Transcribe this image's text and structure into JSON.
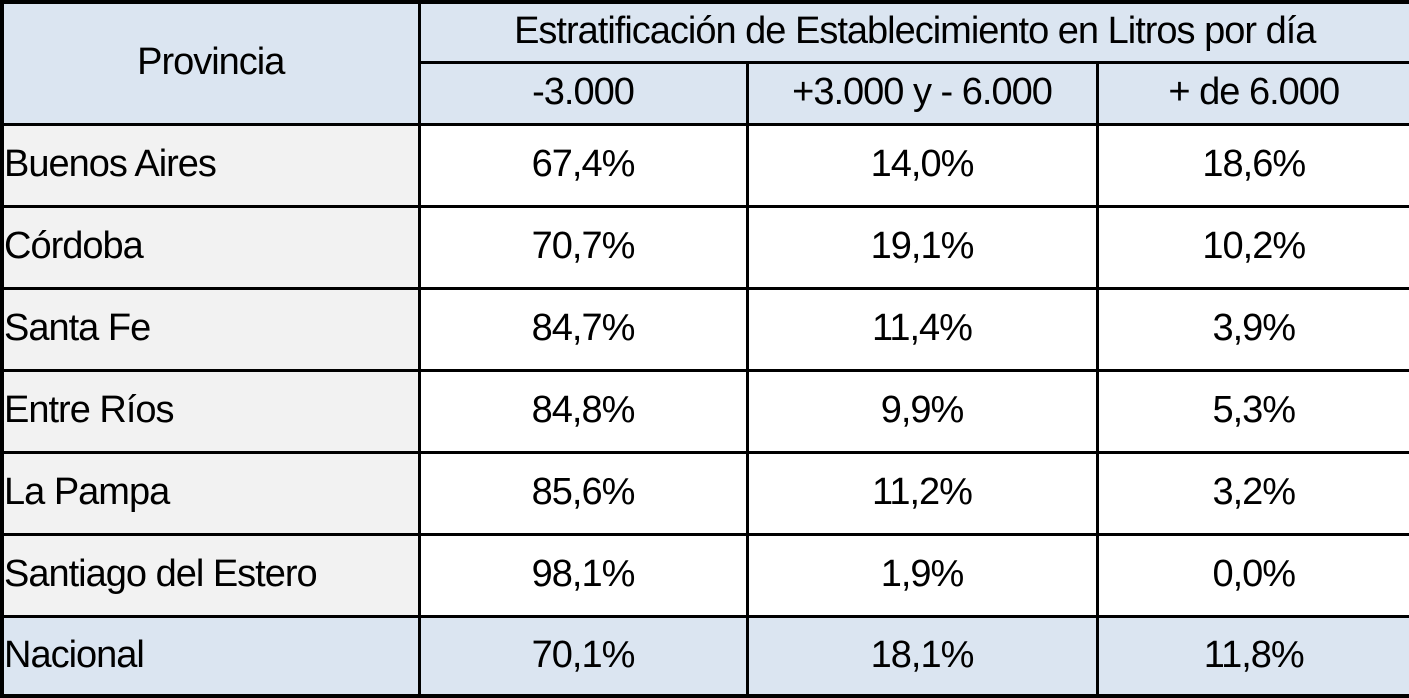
{
  "colors": {
    "header_bg": "#dbe5f1",
    "total_row_bg": "#dbe5f1",
    "province_col_bg": "#f2f2f2",
    "value_cell_bg": "#ffffff",
    "border": "#000000",
    "text": "#000000"
  },
  "table": {
    "col1_header": "Provincia",
    "group_header": "Estratificación de Establecimiento en Litros por día",
    "sub_headers": [
      "-3.000",
      "+3.000 y - 6.000",
      "+ de 6.000"
    ],
    "rows": [
      {
        "provincia": "Buenos Aires",
        "values": [
          "67,4%",
          "14,0%",
          "18,6%"
        ],
        "is_total": false
      },
      {
        "provincia": "Córdoba",
        "values": [
          "70,7%",
          "19,1%",
          "10,2%"
        ],
        "is_total": false
      },
      {
        "provincia": "Santa Fe",
        "values": [
          "84,7%",
          "11,4%",
          "3,9%"
        ],
        "is_total": false
      },
      {
        "provincia": "Entre Ríos",
        "values": [
          "84,8%",
          "9,9%",
          "5,3%"
        ],
        "is_total": false
      },
      {
        "provincia": "La Pampa",
        "values": [
          "85,6%",
          "11,2%",
          "3,2%"
        ],
        "is_total": false
      },
      {
        "provincia": "Santiago del Estero",
        "values": [
          "98,1%",
          "1,9%",
          "0,0%"
        ],
        "is_total": false
      },
      {
        "provincia": "Nacional",
        "values": [
          "70,1%",
          "18,1%",
          "11,8%"
        ],
        "is_total": true
      }
    ]
  },
  "chart_data": {
    "type": "table",
    "title": "Estratificación de Establecimiento en Litros por día",
    "columns": [
      "Provincia",
      "-3.000",
      "+3.000 y - 6.000",
      "+ de 6.000"
    ],
    "value_format": "percent, comma decimal separator",
    "rows": [
      [
        "Buenos Aires",
        67.4,
        14.0,
        18.6
      ],
      [
        "Córdoba",
        70.7,
        19.1,
        10.2
      ],
      [
        "Santa Fe",
        84.7,
        11.4,
        3.9
      ],
      [
        "Entre Ríos",
        84.8,
        9.9,
        5.3
      ],
      [
        "La Pampa",
        85.6,
        11.2,
        3.2
      ],
      [
        "Santiago del Estero",
        98.1,
        1.9,
        0.0
      ],
      [
        "Nacional",
        70.1,
        18.1,
        11.8
      ]
    ]
  }
}
